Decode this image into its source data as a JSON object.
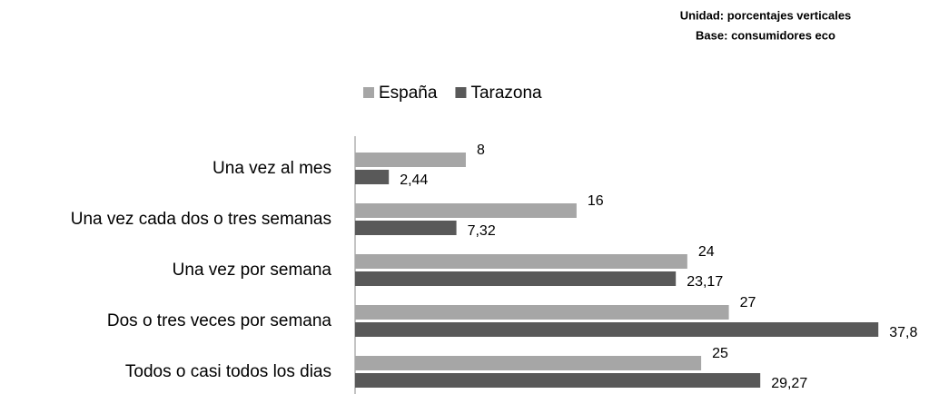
{
  "chart_data": {
    "type": "hbar",
    "subtitle_lines": [
      "Unidad: porcentajes verticales",
      "Base: consumidores eco"
    ],
    "categories": [
      "Una vez al mes",
      "Una vez cada dos o tres semanas",
      "Una vez por semana",
      "Dos o tres veces por semana",
      "Todos o casi todos los dias"
    ],
    "series": [
      {
        "name": "España",
        "color": "#a6a6a6",
        "values": [
          8,
          16,
          24,
          27,
          25
        ]
      },
      {
        "name": "Tarazona",
        "color": "#595959",
        "values": [
          2.44,
          7.32,
          23.17,
          37.8,
          29.27
        ],
        "value_labels": [
          "2,44",
          "7,32",
          "23,17",
          "37,8",
          "29,27"
        ]
      }
    ],
    "xlim": [
      0,
      41
    ],
    "legend": "top"
  }
}
